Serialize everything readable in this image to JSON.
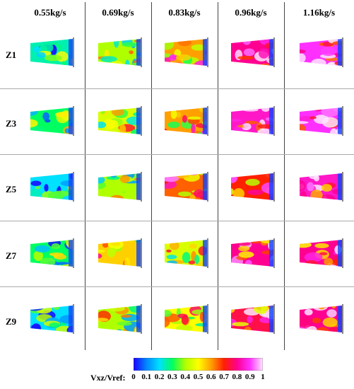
{
  "columns": [
    "0.55kg/s",
    "0.69kg/s",
    "0.83kg/s",
    "0.96kg/s",
    "1.16kg/s"
  ],
  "rows": [
    "Z1",
    "Z3",
    "Z5",
    "Z7",
    "Z9"
  ],
  "legend": {
    "label": "Vxz/Vref:",
    "ticks": [
      "0",
      "0.1",
      "0.2",
      "0.3",
      "0.4",
      "0.5",
      "0.6",
      "0.7",
      "0.8",
      "0.9",
      "1"
    ],
    "colors": [
      "#1a00ff",
      "#0088ff",
      "#00e0ff",
      "#00ff60",
      "#b0ff00",
      "#ffff00",
      "#ffa000",
      "#ff2000",
      "#ff0090",
      "#ff30ff",
      "#ffe6ff"
    ]
  },
  "intensity": [
    [
      0.25,
      0.4,
      0.6,
      0.8,
      0.9
    ],
    [
      0.3,
      0.45,
      0.6,
      0.85,
      0.9
    ],
    [
      0.2,
      0.4,
      0.65,
      0.7,
      0.85
    ],
    [
      0.3,
      0.55,
      0.45,
      0.8,
      0.8
    ],
    [
      0.2,
      0.4,
      0.5,
      0.75,
      0.8
    ]
  ]
}
